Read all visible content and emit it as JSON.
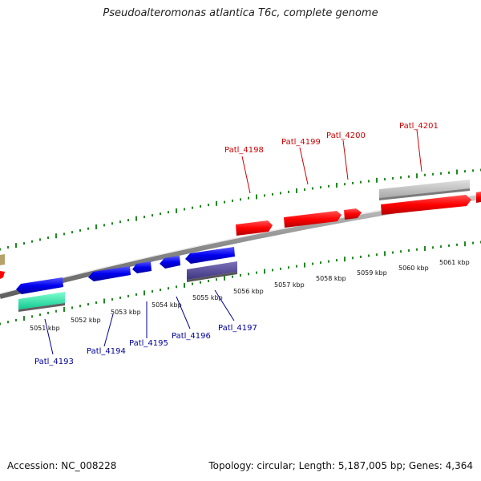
{
  "title": "Pseudoalteromonas atlantica T6c, complete genome",
  "footer": {
    "accession": "Accession: NC_008228",
    "summary": "Topology: circular; Length: 5,187,005 bp; Genes: 4,364"
  },
  "colors": {
    "forward_label": "#cc0000",
    "reverse_label": "#000099",
    "tick": "#228822",
    "backbone": "#808080"
  },
  "scale": {
    "labels": [
      "5051 kbp",
      "5052 kbp",
      "5053 kbp",
      "5054 kbp",
      "5055 kbp",
      "5056 kbp",
      "5057 kbp",
      "5058 kbp",
      "5059 kbp",
      "5060 kbp",
      "5061 kbp"
    ]
  },
  "genes": {
    "forward": [
      "Patl_4198",
      "Patl_4199",
      "Patl_4200",
      "Patl_4201"
    ],
    "reverse": [
      "Patl_4193",
      "Patl_4194",
      "Patl_4195",
      "Patl_4196",
      "Patl_4197"
    ]
  }
}
